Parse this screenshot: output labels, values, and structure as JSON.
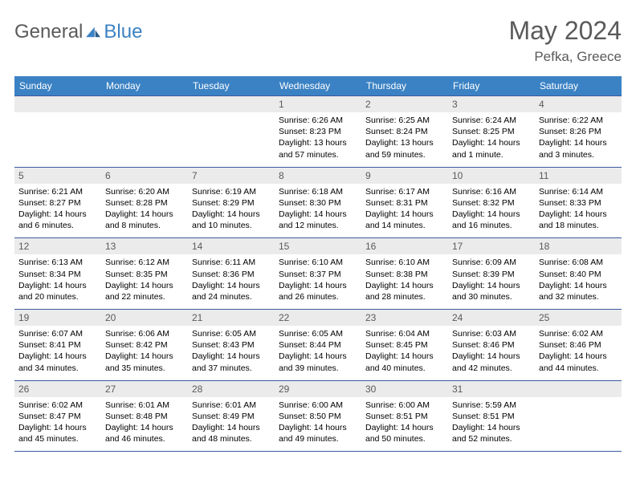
{
  "brand": {
    "part1": "General",
    "part2": "Blue"
  },
  "title": "May 2024",
  "location": "Pefka, Greece",
  "headers": [
    "Sunday",
    "Monday",
    "Tuesday",
    "Wednesday",
    "Thursday",
    "Friday",
    "Saturday"
  ],
  "colors": {
    "header_bg": "#3b82c4",
    "header_text": "#ffffff",
    "daynum_bg": "#ebebeb",
    "daynum_text": "#5a5a5a",
    "border": "#3b5aa0",
    "logo_gray": "#5a5a5a",
    "logo_blue": "#3b82c4"
  },
  "weeks": [
    [
      {
        "n": "",
        "sr": "",
        "ss": "",
        "dl": ""
      },
      {
        "n": "",
        "sr": "",
        "ss": "",
        "dl": ""
      },
      {
        "n": "",
        "sr": "",
        "ss": "",
        "dl": ""
      },
      {
        "n": "1",
        "sr": "Sunrise: 6:26 AM",
        "ss": "Sunset: 8:23 PM",
        "dl": "Daylight: 13 hours and 57 minutes."
      },
      {
        "n": "2",
        "sr": "Sunrise: 6:25 AM",
        "ss": "Sunset: 8:24 PM",
        "dl": "Daylight: 13 hours and 59 minutes."
      },
      {
        "n": "3",
        "sr": "Sunrise: 6:24 AM",
        "ss": "Sunset: 8:25 PM",
        "dl": "Daylight: 14 hours and 1 minute."
      },
      {
        "n": "4",
        "sr": "Sunrise: 6:22 AM",
        "ss": "Sunset: 8:26 PM",
        "dl": "Daylight: 14 hours and 3 minutes."
      }
    ],
    [
      {
        "n": "5",
        "sr": "Sunrise: 6:21 AM",
        "ss": "Sunset: 8:27 PM",
        "dl": "Daylight: 14 hours and 6 minutes."
      },
      {
        "n": "6",
        "sr": "Sunrise: 6:20 AM",
        "ss": "Sunset: 8:28 PM",
        "dl": "Daylight: 14 hours and 8 minutes."
      },
      {
        "n": "7",
        "sr": "Sunrise: 6:19 AM",
        "ss": "Sunset: 8:29 PM",
        "dl": "Daylight: 14 hours and 10 minutes."
      },
      {
        "n": "8",
        "sr": "Sunrise: 6:18 AM",
        "ss": "Sunset: 8:30 PM",
        "dl": "Daylight: 14 hours and 12 minutes."
      },
      {
        "n": "9",
        "sr": "Sunrise: 6:17 AM",
        "ss": "Sunset: 8:31 PM",
        "dl": "Daylight: 14 hours and 14 minutes."
      },
      {
        "n": "10",
        "sr": "Sunrise: 6:16 AM",
        "ss": "Sunset: 8:32 PM",
        "dl": "Daylight: 14 hours and 16 minutes."
      },
      {
        "n": "11",
        "sr": "Sunrise: 6:14 AM",
        "ss": "Sunset: 8:33 PM",
        "dl": "Daylight: 14 hours and 18 minutes."
      }
    ],
    [
      {
        "n": "12",
        "sr": "Sunrise: 6:13 AM",
        "ss": "Sunset: 8:34 PM",
        "dl": "Daylight: 14 hours and 20 minutes."
      },
      {
        "n": "13",
        "sr": "Sunrise: 6:12 AM",
        "ss": "Sunset: 8:35 PM",
        "dl": "Daylight: 14 hours and 22 minutes."
      },
      {
        "n": "14",
        "sr": "Sunrise: 6:11 AM",
        "ss": "Sunset: 8:36 PM",
        "dl": "Daylight: 14 hours and 24 minutes."
      },
      {
        "n": "15",
        "sr": "Sunrise: 6:10 AM",
        "ss": "Sunset: 8:37 PM",
        "dl": "Daylight: 14 hours and 26 minutes."
      },
      {
        "n": "16",
        "sr": "Sunrise: 6:10 AM",
        "ss": "Sunset: 8:38 PM",
        "dl": "Daylight: 14 hours and 28 minutes."
      },
      {
        "n": "17",
        "sr": "Sunrise: 6:09 AM",
        "ss": "Sunset: 8:39 PM",
        "dl": "Daylight: 14 hours and 30 minutes."
      },
      {
        "n": "18",
        "sr": "Sunrise: 6:08 AM",
        "ss": "Sunset: 8:40 PM",
        "dl": "Daylight: 14 hours and 32 minutes."
      }
    ],
    [
      {
        "n": "19",
        "sr": "Sunrise: 6:07 AM",
        "ss": "Sunset: 8:41 PM",
        "dl": "Daylight: 14 hours and 34 minutes."
      },
      {
        "n": "20",
        "sr": "Sunrise: 6:06 AM",
        "ss": "Sunset: 8:42 PM",
        "dl": "Daylight: 14 hours and 35 minutes."
      },
      {
        "n": "21",
        "sr": "Sunrise: 6:05 AM",
        "ss": "Sunset: 8:43 PM",
        "dl": "Daylight: 14 hours and 37 minutes."
      },
      {
        "n": "22",
        "sr": "Sunrise: 6:05 AM",
        "ss": "Sunset: 8:44 PM",
        "dl": "Daylight: 14 hours and 39 minutes."
      },
      {
        "n": "23",
        "sr": "Sunrise: 6:04 AM",
        "ss": "Sunset: 8:45 PM",
        "dl": "Daylight: 14 hours and 40 minutes."
      },
      {
        "n": "24",
        "sr": "Sunrise: 6:03 AM",
        "ss": "Sunset: 8:46 PM",
        "dl": "Daylight: 14 hours and 42 minutes."
      },
      {
        "n": "25",
        "sr": "Sunrise: 6:02 AM",
        "ss": "Sunset: 8:46 PM",
        "dl": "Daylight: 14 hours and 44 minutes."
      }
    ],
    [
      {
        "n": "26",
        "sr": "Sunrise: 6:02 AM",
        "ss": "Sunset: 8:47 PM",
        "dl": "Daylight: 14 hours and 45 minutes."
      },
      {
        "n": "27",
        "sr": "Sunrise: 6:01 AM",
        "ss": "Sunset: 8:48 PM",
        "dl": "Daylight: 14 hours and 46 minutes."
      },
      {
        "n": "28",
        "sr": "Sunrise: 6:01 AM",
        "ss": "Sunset: 8:49 PM",
        "dl": "Daylight: 14 hours and 48 minutes."
      },
      {
        "n": "29",
        "sr": "Sunrise: 6:00 AM",
        "ss": "Sunset: 8:50 PM",
        "dl": "Daylight: 14 hours and 49 minutes."
      },
      {
        "n": "30",
        "sr": "Sunrise: 6:00 AM",
        "ss": "Sunset: 8:51 PM",
        "dl": "Daylight: 14 hours and 50 minutes."
      },
      {
        "n": "31",
        "sr": "Sunrise: 5:59 AM",
        "ss": "Sunset: 8:51 PM",
        "dl": "Daylight: 14 hours and 52 minutes."
      },
      {
        "n": "",
        "sr": "",
        "ss": "",
        "dl": ""
      }
    ]
  ]
}
